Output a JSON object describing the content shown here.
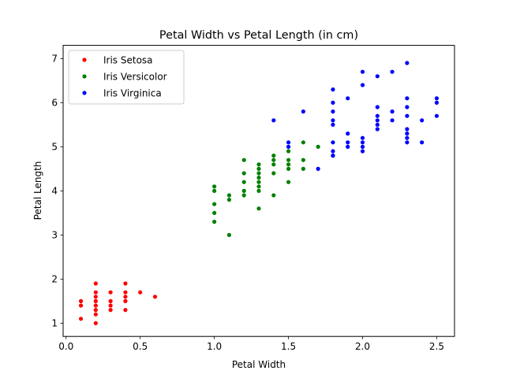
{
  "chart_data": {
    "type": "scatter",
    "title": "Petal Width vs Petal Length (in cm)",
    "xlabel": "Petal Width",
    "ylabel": "Petal Length",
    "xlim": [
      -0.02,
      2.62
    ],
    "ylim": [
      0.7,
      7.3
    ],
    "xticks": [
      0.0,
      0.5,
      1.0,
      1.5,
      2.0,
      2.5
    ],
    "xtick_labels": [
      "0.0",
      "0.5",
      "1.0",
      "1.5",
      "2.0",
      "2.5"
    ],
    "yticks": [
      1,
      2,
      3,
      4,
      5,
      6,
      7
    ],
    "ytick_labels": [
      "1",
      "2",
      "3",
      "4",
      "5",
      "6",
      "7"
    ],
    "grid": false,
    "legend_position": "top-left",
    "series": [
      {
        "name": "Iris Setosa",
        "color": "#ff0000",
        "points": [
          [
            0.1,
            1.5
          ],
          [
            0.1,
            1.4
          ],
          [
            0.1,
            1.1
          ],
          [
            0.2,
            1.9
          ],
          [
            0.2,
            1.7
          ],
          [
            0.2,
            1.6
          ],
          [
            0.2,
            1.5
          ],
          [
            0.2,
            1.4
          ],
          [
            0.2,
            1.3
          ],
          [
            0.2,
            1.2
          ],
          [
            0.2,
            1.0
          ],
          [
            0.3,
            1.7
          ],
          [
            0.3,
            1.5
          ],
          [
            0.3,
            1.4
          ],
          [
            0.3,
            1.3
          ],
          [
            0.4,
            1.9
          ],
          [
            0.4,
            1.7
          ],
          [
            0.4,
            1.6
          ],
          [
            0.4,
            1.5
          ],
          [
            0.4,
            1.3
          ],
          [
            0.5,
            1.7
          ],
          [
            0.6,
            1.6
          ]
        ]
      },
      {
        "name": "Iris Versicolor",
        "color": "#008000",
        "points": [
          [
            1.0,
            4.1
          ],
          [
            1.0,
            4.0
          ],
          [
            1.0,
            3.7
          ],
          [
            1.0,
            3.5
          ],
          [
            1.0,
            3.3
          ],
          [
            1.1,
            3.9
          ],
          [
            1.1,
            3.8
          ],
          [
            1.1,
            3.0
          ],
          [
            1.2,
            4.7
          ],
          [
            1.2,
            4.4
          ],
          [
            1.2,
            4.2
          ],
          [
            1.2,
            4.0
          ],
          [
            1.2,
            3.9
          ],
          [
            1.3,
            4.6
          ],
          [
            1.3,
            4.5
          ],
          [
            1.3,
            4.4
          ],
          [
            1.3,
            4.3
          ],
          [
            1.3,
            4.2
          ],
          [
            1.3,
            4.1
          ],
          [
            1.3,
            4.0
          ],
          [
            1.3,
            3.6
          ],
          [
            1.4,
            4.8
          ],
          [
            1.4,
            4.7
          ],
          [
            1.4,
            4.6
          ],
          [
            1.4,
            4.4
          ],
          [
            1.4,
            3.9
          ],
          [
            1.5,
            4.9
          ],
          [
            1.5,
            4.7
          ],
          [
            1.5,
            4.6
          ],
          [
            1.5,
            4.5
          ],
          [
            1.5,
            4.2
          ],
          [
            1.6,
            5.1
          ],
          [
            1.6,
            4.7
          ],
          [
            1.6,
            4.5
          ],
          [
            1.7,
            5.0
          ],
          [
            1.8,
            4.8
          ]
        ]
      },
      {
        "name": "Iris Virginica",
        "color": "#0000ff",
        "points": [
          [
            1.4,
            5.6
          ],
          [
            1.5,
            5.1
          ],
          [
            1.5,
            5.0
          ],
          [
            1.6,
            5.8
          ],
          [
            1.7,
            4.5
          ],
          [
            1.8,
            6.3
          ],
          [
            1.8,
            6.0
          ],
          [
            1.8,
            5.8
          ],
          [
            1.8,
            5.6
          ],
          [
            1.8,
            5.5
          ],
          [
            1.8,
            5.1
          ],
          [
            1.8,
            4.9
          ],
          [
            1.8,
            4.8
          ],
          [
            1.9,
            6.1
          ],
          [
            1.9,
            5.3
          ],
          [
            1.9,
            5.1
          ],
          [
            1.9,
            5.0
          ],
          [
            2.0,
            6.7
          ],
          [
            2.0,
            6.4
          ],
          [
            2.0,
            5.2
          ],
          [
            2.0,
            5.1
          ],
          [
            2.0,
            5.0
          ],
          [
            2.0,
            4.9
          ],
          [
            2.1,
            6.6
          ],
          [
            2.1,
            5.9
          ],
          [
            2.1,
            5.7
          ],
          [
            2.1,
            5.6
          ],
          [
            2.1,
            5.5
          ],
          [
            2.1,
            5.4
          ],
          [
            2.2,
            6.7
          ],
          [
            2.2,
            5.8
          ],
          [
            2.2,
            5.6
          ],
          [
            2.3,
            6.9
          ],
          [
            2.3,
            6.1
          ],
          [
            2.3,
            5.9
          ],
          [
            2.3,
            5.7
          ],
          [
            2.3,
            5.4
          ],
          [
            2.3,
            5.3
          ],
          [
            2.3,
            5.2
          ],
          [
            2.3,
            5.1
          ],
          [
            2.4,
            5.6
          ],
          [
            2.4,
            5.1
          ],
          [
            2.5,
            6.1
          ],
          [
            2.5,
            6.0
          ],
          [
            2.5,
            5.7
          ]
        ]
      }
    ]
  }
}
